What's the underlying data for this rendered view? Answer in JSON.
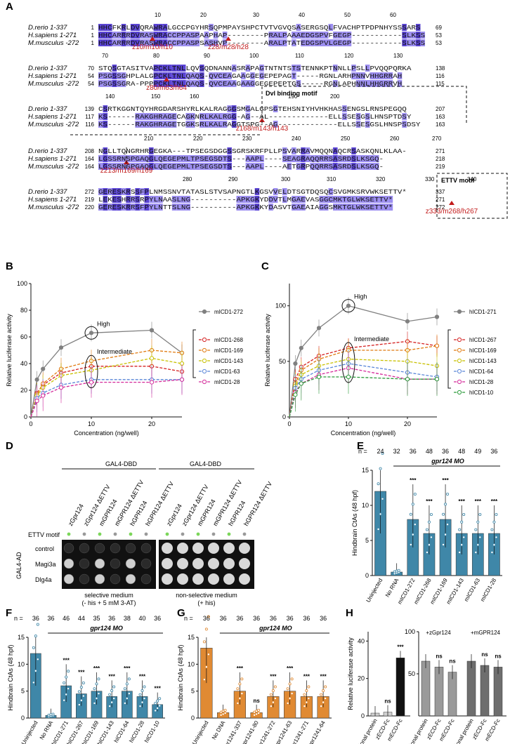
{
  "panels": [
    "A",
    "B",
    "C",
    "D",
    "E",
    "F",
    "G",
    "H"
  ],
  "colors": {
    "align_dark": "#5a44d4",
    "align_mid": "#9c8ef0",
    "align_light": "#cbc3f7",
    "marker": "#c21b1b",
    "teal": "#3f87a8",
    "orange": "#e08a33",
    "gray": "#888888",
    "black": "#111111"
  },
  "alignment": {
    "species": [
      "D.rerio 1-337",
      "H.sapiens 1-271",
      "M.musculus -272"
    ],
    "blocks": [
      {
        "ticks": [
          "10",
          "20",
          "30",
          "40",
          "50",
          "60"
        ],
        "rows": [
          {
            "start": "1",
            "seq": "HHCFKRLDVQRAWRALGCCPGYHRSQPMPAYSHPCTVTVGVQSASERGSQLFVACHPTPDPNHYSSSARS",
            "end": "69"
          },
          {
            "start": "1",
            "seq": "HHCARRRDVRASWRACCPPASPAAPHAP--------PRALPAAAEDGSPVFGEGP-----------SLKSS",
            "end": "53"
          },
          {
            "start": "1",
            "seq": "HHCARRRDVRASWRACCPPASPSASHVP--------ARALPTATEDGSPVLGEGP-----------SLKSS",
            "end": "53"
          }
        ],
        "markers": [
          "z10/m10/h10",
          "z28/m28/h28"
        ]
      },
      {
        "ticks": [
          "70",
          "80",
          "90",
          "100",
          "110",
          "120",
          "130"
        ],
        "rows": [
          {
            "start": "70",
            "seq": "STQSGTASITVAPCKLTNLLQVSQDNANNASRAPAGTNTNTSTSTENNKPTNNLLPSLLPVQQPQRKA",
            "end": "138"
          },
          {
            "start": "54",
            "seq": "PSGSSGHPLALGPCKLTNLQAQS-QVCEAGAAGGEGEPEPAGT-----RGNLARHPNNVHHGRRAH",
            "end": "116"
          },
          {
            "start": "54",
            "seq": "PSGSSGRA-PPPPCKLTNLQAQS-QVCEAAGAAGGEGEPEPTGS-----RGNLAPHNNLHHGRRVH",
            "end": "115"
          }
        ],
        "markers": [
          "z80/m63/h64"
        ]
      },
      {
        "ticks": [
          "140",
          "150",
          "160",
          "190",
          "200"
        ],
        "rows": [
          {
            "start": "139",
            "seq": "CSRTKGGNTQYHRGDARSHYRLKALRAGGGSMGALGPSGTEHSNIYHVHKHASSENGSLRNSPEGQQ",
            "end": "207"
          },
          {
            "start": "117",
            "seq": "KS------RAKGHRAGECAGKNRLKALRGG-AG--AL-------------ELLSSESGSLHNSPTDSY",
            "end": "163"
          },
          {
            "start": "116",
            "seq": "KS------RAKGHRAGETGGKSRLKALRAGGTSPG--AG-------------ELLSSESGSLHNSPSDSY",
            "end": "163"
          }
        ],
        "markers": [
          "z168/m143/h143"
        ],
        "motif": "Dvl binding motif"
      },
      {
        "ticks": [
          "210",
          "220",
          "230",
          "240",
          "250",
          "260",
          "270"
        ],
        "rows": [
          {
            "start": "208",
            "seq": "NGLLTQNGRHRGEGKA---TPSEGSDGGSSGRSKRFPLLPSVARRAVMQQNAQCRSASKQNLKLAA-",
            "end": "271"
          },
          {
            "start": "164",
            "seq": "LGSSRNSPGAQGLQEGEPMLTPSEGSDTS---AAPL----SEAGRAQQRRSASRDSLKSGQ-",
            "end": "218"
          },
          {
            "start": "164",
            "seq": "LGSSRNSPGAQGLQEGEPMLTPSEGSDTS---AAPL----AETGRPQQRRSASRDSLKSGQ-",
            "end": "219"
          }
        ],
        "markers": [
          "z213/m169/h169"
        ]
      },
      {
        "ticks": [
          "280",
          "290",
          "300",
          "310",
          "320",
          "330",
          "340"
        ],
        "rows": [
          {
            "start": "272",
            "seq": "GERESKRSSFPLNMSSNVTATASLSTVSAPNGTLKGSVVELDTSGTDQSQCSVGMKSRVWKSETTV*",
            "end": "337"
          },
          {
            "start": "219",
            "seq": "LEKESHRRSRPYLNAASLNG----------APKGKYDDVTLMGAEVASGGCMKTGLWKSETTV*",
            "end": "271"
          },
          {
            "start": "220",
            "seq": "GERESKRRSFPYLNTTSLNG----------APKGKKYDASVTGAEAIAGGSMKTGLWKSETTV*",
            "end": "272"
          }
        ],
        "markers": [
          "z333/m268/h267"
        ],
        "motif": "ETTV motif"
      }
    ]
  },
  "panelB": {
    "chart_data": {
      "type": "line",
      "xlabel": "Concentration (ng/well)",
      "ylabel": "Relative luciferase activity",
      "x": [
        0,
        1,
        2,
        5,
        10,
        20,
        25
      ],
      "xlim": [
        0,
        25
      ],
      "ylim": [
        0,
        100
      ],
      "xticks": [
        "0",
        "10",
        "20"
      ],
      "yticks": [
        "0",
        "20",
        "40",
        "60",
        "80",
        "100"
      ],
      "annotations": [
        "High",
        "Intermediate"
      ],
      "series": [
        {
          "name": "mICD1-272",
          "color": "#808080",
          "values": [
            0,
            28,
            36,
            52,
            63,
            65,
            48
          ]
        },
        {
          "name": "mICD1-268",
          "color": "#d42020",
          "values": [
            0,
            18,
            24,
            33,
            38,
            38,
            34
          ]
        },
        {
          "name": "mICD1-169",
          "color": "#e07a10",
          "values": [
            0,
            17,
            25,
            36,
            42,
            50,
            48
          ]
        },
        {
          "name": "mICD1-143",
          "color": "#c8c000",
          "values": [
            0,
            16,
            22,
            31,
            35,
            44,
            40
          ]
        },
        {
          "name": "mICD1-63",
          "color": "#5a86d8",
          "values": [
            0,
            14,
            18,
            24,
            28,
            28,
            28
          ]
        },
        {
          "name": "mICD1-28",
          "color": "#d42a9a",
          "values": [
            0,
            12,
            16,
            22,
            26,
            26,
            28
          ]
        }
      ]
    }
  },
  "panelC": {
    "chart_data": {
      "type": "line",
      "xlabel": "Concentration (ng/well)",
      "ylabel": "Relative luciferase activity",
      "x": [
        0,
        1,
        2,
        5,
        10,
        20,
        25
      ],
      "xlim": [
        0,
        25
      ],
      "ylim": [
        0,
        120
      ],
      "xticks": [
        "0",
        "10",
        "20"
      ],
      "yticks": [
        "0",
        "50",
        "100"
      ],
      "annotations": [
        "High",
        "Intermediate"
      ],
      "series": [
        {
          "name": "hICD1-271",
          "color": "#808080",
          "values": [
            0,
            48,
            62,
            80,
            100,
            86,
            90
          ]
        },
        {
          "name": "hICD1-267",
          "color": "#d42020",
          "values": [
            0,
            34,
            45,
            55,
            62,
            68,
            64
          ]
        },
        {
          "name": "hICD1-169",
          "color": "#e07a10",
          "values": [
            0,
            30,
            42,
            52,
            60,
            60,
            64
          ]
        },
        {
          "name": "hICD1-143",
          "color": "#c8c000",
          "values": [
            0,
            28,
            38,
            46,
            52,
            50,
            46
          ]
        },
        {
          "name": "hICD1-64",
          "color": "#5a86d8",
          "values": [
            0,
            26,
            34,
            42,
            48,
            40,
            36
          ]
        },
        {
          "name": "hICD1-28",
          "color": "#d42a9a",
          "values": [
            0,
            22,
            30,
            38,
            44,
            34,
            34
          ]
        },
        {
          "name": "hICD1-10",
          "color": "#2a9a3a",
          "values": [
            0,
            20,
            30,
            36,
            36,
            34,
            34
          ]
        }
      ]
    }
  },
  "panelD": {
    "header": "GAL4-DBD",
    "columns": [
      "zGpr124",
      "zGpr124 ΔETTV",
      "mGPR124",
      "mGPR124 ΔETTV",
      "hGPR124",
      "hGPR124 ΔETTV"
    ],
    "ettv_label": "ETTV motif",
    "ettv": [
      true,
      false,
      true,
      false,
      true,
      false
    ],
    "ad_label": "GAL4-AD",
    "rows": [
      "control",
      "Magi3a",
      "Dlg4a"
    ],
    "selective_label": "selective medium",
    "selective_sub": "(- his + 5 mM 3-AT)",
    "nonselective_label": "non-selective medium",
    "nonselective_sub": "(+ his)"
  },
  "panelE": {
    "chart_data": {
      "type": "bar",
      "ylabel": "Hindbrain CtAs (48 hpf)",
      "ylim": [
        0,
        15
      ],
      "yticks": [
        "0",
        "5",
        "10",
        "15"
      ],
      "categories": [
        "Uninjected",
        "No RNA",
        "mICD1-272",
        "mICD1-268",
        "mICD1-169",
        "mICD1-143",
        "mICD1-63",
        "mICD1-28"
      ],
      "values": [
        12,
        0.5,
        8,
        6,
        8,
        6,
        6,
        6
      ],
      "n": [
        "24",
        "32",
        "36",
        "48",
        "36",
        "48",
        "49",
        "36"
      ],
      "sig": [
        "",
        "",
        "***",
        "***",
        "***",
        "***",
        "***",
        "***"
      ],
      "colors": [
        "#3f87a8",
        "#3f87a8",
        "#3f87a8",
        "#3f87a8",
        "#3f87a8",
        "#3f87a8",
        "#3f87a8",
        "#3f87a8"
      ]
    },
    "n_label": "n =",
    "mo_label": "gpr124 MO"
  },
  "panelF": {
    "chart_data": {
      "type": "bar",
      "ylabel": "Hindbrain CtAs (48 hpf)",
      "ylim": [
        0,
        15
      ],
      "yticks": [
        "0",
        "5",
        "10",
        "15"
      ],
      "categories": [
        "Uninjected",
        "No RNA",
        "hICD1-271",
        "hICD1-267",
        "hICD1-169",
        "hICD1-143",
        "hICD1-64",
        "hICD1-28",
        "hICD1-10"
      ],
      "values": [
        12,
        0.5,
        6,
        4.5,
        5,
        4,
        5,
        4,
        2.5
      ],
      "n": [
        "36",
        "36",
        "46",
        "44",
        "35",
        "36",
        "38",
        "40",
        "36"
      ],
      "sig": [
        "",
        "",
        "***",
        "***",
        "***",
        "***",
        "***",
        "***",
        "***"
      ]
    },
    "n_label": "n =",
    "mo_label": "gpr124 MO"
  },
  "panelG": {
    "chart_data": {
      "type": "bar",
      "ylabel": "Hindbrain CtAs (48 hpf)",
      "ylim": [
        0,
        15
      ],
      "yticks": [
        "0",
        "5",
        "10",
        "15"
      ],
      "categories": [
        "Uninjected",
        "No DNA",
        "kdrl:zgpr1241-337",
        "kdrl:zgpr1241-80",
        "kdrl:mgpr1241-272",
        "kdrl:mgpr1241-63",
        "kdrl:hgpr1241-271",
        "kdrl:hgpr1241-64"
      ],
      "values": [
        13,
        1,
        5,
        1,
        4,
        5,
        4,
        4
      ],
      "n": [
        "36",
        "36",
        "36",
        "36",
        "36",
        "36",
        "36",
        "36"
      ],
      "sig": [
        "",
        "",
        "***",
        "ns",
        "***",
        "***",
        "***",
        "***"
      ]
    },
    "n_label": "n =",
    "mo_label": "gpr124 MO"
  },
  "panelH": {
    "chart_data": {
      "type": "bar",
      "ylabel": "Relative luciferase activity",
      "categories": [
        "No additional protein",
        "zECD-Fc",
        "mECD-Fc",
        "No additional protein",
        "zECD-Fc",
        "mECD-Fc",
        "No additional protein",
        "zECD-Fc",
        "mECD-Fc"
      ],
      "values": [
        1.5,
        2,
        31,
        65,
        58,
        52,
        65,
        60,
        58
      ],
      "sig": [
        "",
        "ns",
        "***",
        "",
        "ns",
        "ns",
        "",
        "ns",
        "ns"
      ],
      "left_ylim": [
        0,
        45
      ],
      "left_yticks": [
        "0",
        "20",
        "40"
      ],
      "right_ylim": [
        0,
        100
      ],
      "right_yticks": [
        "50",
        "100"
      ],
      "groups": [
        "+zGpr124",
        "+mGPR124"
      ]
    }
  }
}
